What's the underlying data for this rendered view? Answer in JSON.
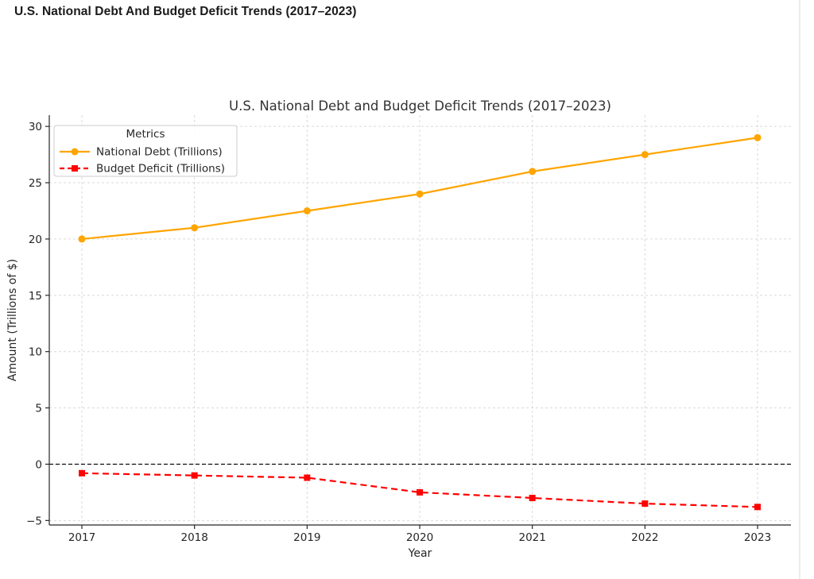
{
  "page": {
    "heading": "U.S. National Debt And Budget Deficit Trends (2017–2023)"
  },
  "chart_data": {
    "type": "line",
    "title": "U.S. National Debt and Budget Deficit Trends (2017–2023)",
    "xlabel": "Year",
    "ylabel": "Amount (Trillions of $)",
    "categories": [
      "2017",
      "2018",
      "2019",
      "2020",
      "2021",
      "2022",
      "2023"
    ],
    "series": [
      {
        "name": "National Debt (Trillions)",
        "color": "#FFA500",
        "line_style": "solid",
        "marker": "circle",
        "values": [
          20.0,
          21.0,
          22.5,
          24.0,
          26.0,
          27.5,
          29.0
        ]
      },
      {
        "name": "Budget Deficit (Trillions)",
        "color": "#FF0000",
        "line_style": "dashed",
        "marker": "square",
        "values": [
          -0.8,
          -1.0,
          -1.2,
          -2.5,
          -3.0,
          -3.5,
          -3.8
        ]
      }
    ],
    "yticks": [
      -5,
      0,
      5,
      10,
      15,
      20,
      25,
      30
    ],
    "ylim": [
      -5.4,
      31.0
    ],
    "grid": true,
    "grid_style": "dashed",
    "legend": {
      "title": "Metrics",
      "position": "upper left"
    },
    "zero_line": {
      "y": 0,
      "style": "dashed",
      "color": "#000000"
    },
    "colors": {
      "grid": "#d9d9d9",
      "text": "#262626",
      "title": "#333333",
      "spine": "#262626",
      "legend_border": "#cccccc",
      "legend_bg": "#ffffff"
    }
  }
}
